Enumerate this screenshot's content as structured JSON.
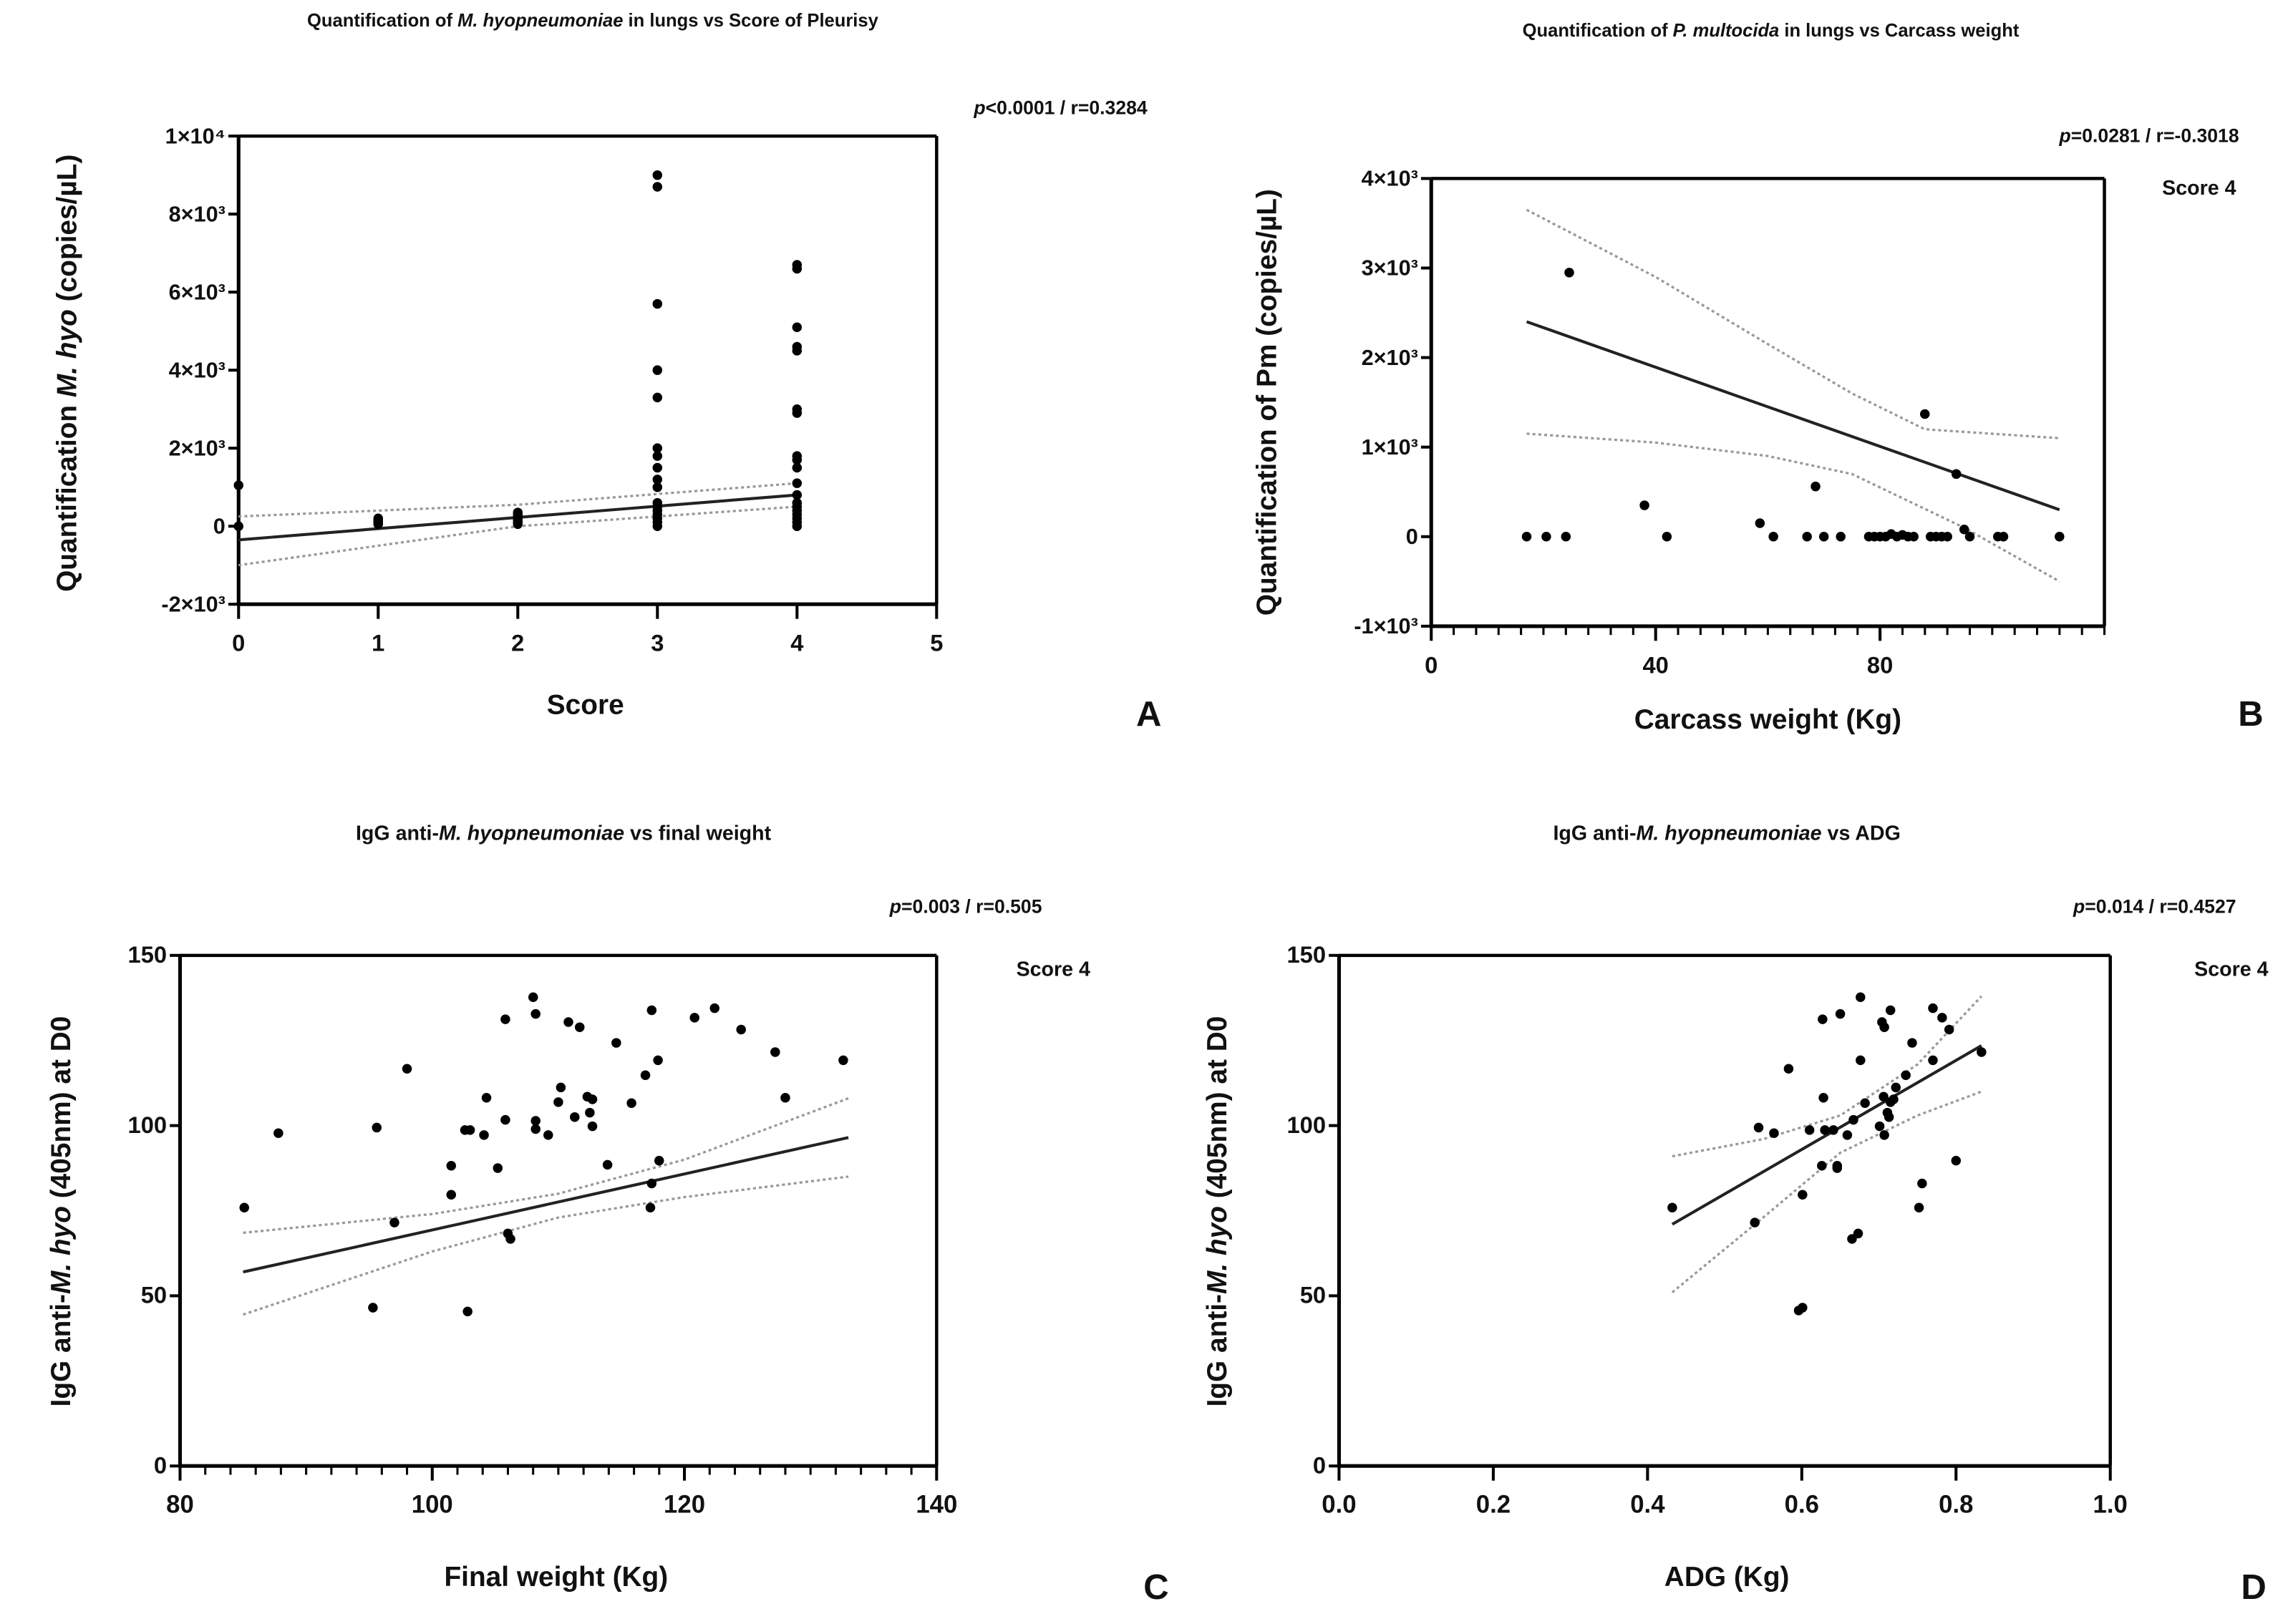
{
  "colors": {
    "points": "#000000",
    "fit_line": "#222222",
    "ci_line": "#999999",
    "axis": "#000000"
  },
  "chart_data": [
    {
      "id": "A",
      "type": "scatter",
      "panel_letter": "A",
      "title_parts": [
        {
          "text": "Quantification of ",
          "italic": false
        },
        {
          "text": "M. hyopneumoniae",
          "italic": true
        },
        {
          "text": " in lungs vs Score of Pleurisy",
          "italic": false
        }
      ],
      "stats_parts": [
        {
          "text": "p",
          "italic": true
        },
        {
          "text": "<0.0001 / r=0.3284",
          "italic": false
        }
      ],
      "annotation": "",
      "xlabel_parts": [
        {
          "text": "Score",
          "italic": false
        }
      ],
      "ylabel_parts": [
        {
          "text": "Quantification ",
          "italic": false
        },
        {
          "text": "M. hyo",
          "italic": true
        },
        {
          "text": " (copies/µL)",
          "italic": false
        }
      ],
      "xlim": [
        0,
        5
      ],
      "ylim": [
        -2000,
        10000
      ],
      "xticks": [
        0,
        1,
        2,
        3,
        4,
        5
      ],
      "xtick_labels": [
        "0",
        "1",
        "2",
        "3",
        "4",
        "5"
      ],
      "yticks": [
        -2000,
        0,
        2000,
        4000,
        6000,
        8000,
        10000
      ],
      "ytick_labels": [
        "-2×10³",
        "0",
        "2×10³",
        "4×10³",
        "6×10³",
        "8×10³",
        "1×10⁴"
      ],
      "x_minor_step": null,
      "points": [
        [
          0,
          0
        ],
        [
          0,
          1050
        ],
        [
          1,
          50
        ],
        [
          1,
          100
        ],
        [
          1,
          150
        ],
        [
          1,
          200
        ],
        [
          2,
          50
        ],
        [
          2,
          100
        ],
        [
          2,
          150
        ],
        [
          2,
          200
        ],
        [
          2,
          250
        ],
        [
          2,
          300
        ],
        [
          2,
          350
        ],
        [
          3,
          0
        ],
        [
          3,
          100
        ],
        [
          3,
          200
        ],
        [
          3,
          300
        ],
        [
          3,
          400
        ],
        [
          3,
          500
        ],
        [
          3,
          600
        ],
        [
          3,
          1000
        ],
        [
          3,
          1200
        ],
        [
          3,
          1500
        ],
        [
          3,
          1800
        ],
        [
          3,
          2000
        ],
        [
          3,
          3300
        ],
        [
          3,
          4000
        ],
        [
          3,
          5700
        ],
        [
          3,
          8700
        ],
        [
          3,
          9000
        ],
        [
          4,
          0
        ],
        [
          4,
          100
        ],
        [
          4,
          200
        ],
        [
          4,
          300
        ],
        [
          4,
          400
        ],
        [
          4,
          500
        ],
        [
          4,
          600
        ],
        [
          4,
          800
        ],
        [
          4,
          1100
        ],
        [
          4,
          1500
        ],
        [
          4,
          1700
        ],
        [
          4,
          1800
        ],
        [
          4,
          2900
        ],
        [
          4,
          3000
        ],
        [
          4,
          4500
        ],
        [
          4,
          4600
        ],
        [
          4,
          5100
        ],
        [
          4,
          6600
        ],
        [
          4,
          6700
        ]
      ],
      "fit": [
        [
          0,
          -350
        ],
        [
          4,
          800
        ]
      ],
      "ci_upper": [
        [
          0,
          250
        ],
        [
          2,
          550
        ],
        [
          4,
          1100
        ]
      ],
      "ci_lower": [
        [
          0,
          -1000
        ],
        [
          2,
          0
        ],
        [
          4,
          500
        ]
      ]
    },
    {
      "id": "B",
      "type": "scatter",
      "panel_letter": "B",
      "title_parts": [
        {
          "text": "Quantification of ",
          "italic": false
        },
        {
          "text": "P. multocida",
          "italic": true
        },
        {
          "text": " in lungs vs Carcass weight",
          "italic": false
        }
      ],
      "stats_parts": [
        {
          "text": "p",
          "italic": true
        },
        {
          "text": "=0.0281 / r=-0.3018",
          "italic": false
        }
      ],
      "annotation": "Score 4",
      "xlabel_parts": [
        {
          "text": "Carcass weight (Kg)",
          "italic": false
        }
      ],
      "ylabel_parts": [
        {
          "text": "Quantification of Pm (copies/µL)",
          "italic": false
        }
      ],
      "xlim": [
        0,
        120
      ],
      "ylim": [
        -1000,
        4000
      ],
      "xticks": [
        0,
        40,
        80
      ],
      "xtick_labels": [
        "0",
        "40",
        "80"
      ],
      "yticks": [
        -1000,
        0,
        1000,
        2000,
        3000,
        4000
      ],
      "ytick_labels": [
        "-1×10³",
        "0",
        "1×10³",
        "2×10³",
        "3×10³",
        "4×10³"
      ],
      "x_minor_step": 4,
      "points": [
        [
          17,
          0
        ],
        [
          20.5,
          0
        ],
        [
          24,
          0
        ],
        [
          24.6,
          2950
        ],
        [
          38,
          350
        ],
        [
          42,
          0
        ],
        [
          58.6,
          150
        ],
        [
          61,
          0
        ],
        [
          67,
          0
        ],
        [
          68.5,
          560
        ],
        [
          70,
          0
        ],
        [
          73,
          0
        ],
        [
          78,
          0
        ],
        [
          79,
          0
        ],
        [
          80,
          0
        ],
        [
          81,
          0
        ],
        [
          82,
          30
        ],
        [
          83,
          0
        ],
        [
          84,
          20
        ],
        [
          85,
          0
        ],
        [
          86,
          0
        ],
        [
          88,
          1370
        ],
        [
          89,
          0
        ],
        [
          90,
          0
        ],
        [
          91,
          0
        ],
        [
          92,
          0
        ],
        [
          93.6,
          700
        ],
        [
          95,
          80
        ],
        [
          96,
          0
        ],
        [
          101,
          0
        ],
        [
          102,
          0
        ],
        [
          112,
          0
        ]
      ],
      "fit": [
        [
          17,
          2400
        ],
        [
          112,
          300
        ]
      ],
      "ci_upper": [
        [
          17,
          3650
        ],
        [
          40,
          2900
        ],
        [
          60,
          2150
        ],
        [
          75,
          1600
        ],
        [
          88,
          1200
        ],
        [
          112,
          1100
        ]
      ],
      "ci_lower": [
        [
          17,
          1150
        ],
        [
          40,
          1050
        ],
        [
          60,
          900
        ],
        [
          75,
          700
        ],
        [
          95,
          100
        ],
        [
          112,
          -500
        ]
      ]
    },
    {
      "id": "C",
      "type": "scatter",
      "panel_letter": "C",
      "title_parts": [
        {
          "text": "IgG anti-",
          "italic": false
        },
        {
          "text": "M. hyopneumoniae",
          "italic": true
        },
        {
          "text": " vs final weight",
          "italic": false
        }
      ],
      "stats_parts": [
        {
          "text": "p",
          "italic": true
        },
        {
          "text": "=0.003 / r=0.505",
          "italic": false
        }
      ],
      "annotation": "Score 4",
      "xlabel_parts": [
        {
          "text": "Final weight (Kg)",
          "italic": false
        }
      ],
      "ylabel_parts": [
        {
          "text": "IgG anti-",
          "italic": false
        },
        {
          "text": "M. hyo",
          "italic": true
        },
        {
          "text": " (405nm) at D0",
          "italic": false
        }
      ],
      "xlim": [
        80,
        140
      ],
      "ylim": [
        0,
        150
      ],
      "xticks": [
        80,
        100,
        120,
        140
      ],
      "xtick_labels": [
        "80",
        "100",
        "120",
        "140"
      ],
      "yticks": [
        0,
        50,
        100,
        150
      ],
      "ytick_labels": [
        "0",
        "50",
        "100",
        "150"
      ],
      "x_minor_step": 2,
      "points": [
        [
          85.1,
          75.9
        ],
        [
          87.8,
          97.8
        ],
        [
          95.6,
          99.4
        ],
        [
          95.3,
          46.5
        ],
        [
          97,
          71.5
        ],
        [
          98,
          116.7
        ],
        [
          101.5,
          88.2
        ],
        [
          101.5,
          79.7
        ],
        [
          102.6,
          98.7
        ],
        [
          103,
          98.7
        ],
        [
          102.8,
          45.4
        ],
        [
          104.1,
          97.2
        ],
        [
          104.3,
          108.2
        ],
        [
          105.2,
          87.5
        ],
        [
          105.8,
          131.2
        ],
        [
          105.8,
          101.7
        ],
        [
          106,
          68.3
        ],
        [
          106.2,
          66.7
        ],
        [
          108,
          137.7
        ],
        [
          108.2,
          132.8
        ],
        [
          108.2,
          101.4
        ],
        [
          108.2,
          99
        ],
        [
          109.2,
          97.2
        ],
        [
          110,
          106.9
        ],
        [
          110.2,
          111.2
        ],
        [
          110.8,
          130.4
        ],
        [
          111.3,
          102.5
        ],
        [
          111.7,
          128.9
        ],
        [
          112.3,
          108.5
        ],
        [
          112.7,
          107.7
        ],
        [
          112.5,
          103.8
        ],
        [
          112.7,
          99.8
        ],
        [
          113.9,
          88.5
        ],
        [
          114.6,
          124.3
        ],
        [
          115.8,
          106.6
        ],
        [
          116.9,
          114.8
        ],
        [
          117.4,
          133.9
        ],
        [
          117.4,
          83
        ],
        [
          117.3,
          75.9
        ],
        [
          117.9,
          119.2
        ],
        [
          118,
          89.7
        ],
        [
          120.8,
          131.7
        ],
        [
          122.4,
          134.5
        ],
        [
          124.5,
          128.2
        ],
        [
          127.2,
          121.6
        ],
        [
          128,
          108.2
        ],
        [
          132.6,
          119.2
        ]
      ],
      "fit": [
        [
          85,
          57
        ],
        [
          133,
          96.5
        ]
      ],
      "ci_upper": [
        [
          85,
          68.5
        ],
        [
          100,
          74
        ],
        [
          110,
          80
        ],
        [
          120,
          90
        ],
        [
          133,
          108
        ]
      ],
      "ci_lower": [
        [
          85,
          44.5
        ],
        [
          100,
          63
        ],
        [
          110,
          73
        ],
        [
          120,
          79
        ],
        [
          133,
          85
        ]
      ]
    },
    {
      "id": "D",
      "type": "scatter",
      "panel_letter": "D",
      "title_parts": [
        {
          "text": "IgG anti-",
          "italic": false
        },
        {
          "text": "M. hyopneumoniae",
          "italic": true
        },
        {
          "text": " vs ADG",
          "italic": false
        }
      ],
      "stats_parts": [
        {
          "text": "p",
          "italic": true
        },
        {
          "text": "=0.014 / r=0.4527",
          "italic": false
        }
      ],
      "annotation": "Score 4",
      "xlabel_parts": [
        {
          "text": "ADG (Kg)",
          "italic": false
        }
      ],
      "ylabel_parts": [
        {
          "text": "IgG anti-",
          "italic": false
        },
        {
          "text": "M. hyo",
          "italic": true
        },
        {
          "text": " (405nm) at D0",
          "italic": false
        }
      ],
      "xlim": [
        0,
        1
      ],
      "ylim": [
        0,
        150
      ],
      "xticks": [
        0,
        0.2,
        0.4,
        0.6,
        0.8,
        1.0
      ],
      "xtick_labels": [
        "0.0",
        "0.2",
        "0.4",
        "0.6",
        "0.8",
        "1.0"
      ],
      "yticks": [
        0,
        50,
        100,
        150
      ],
      "ytick_labels": [
        "0",
        "50",
        "100",
        "150"
      ],
      "x_minor_step": null,
      "points": [
        [
          0.432,
          75.9
        ],
        [
          0.539,
          71.5
        ],
        [
          0.544,
          99.4
        ],
        [
          0.564,
          97.8
        ],
        [
          0.583,
          116.7
        ],
        [
          0.596,
          45.7
        ],
        [
          0.601,
          46.5
        ],
        [
          0.601,
          79.7
        ],
        [
          0.61,
          98.7
        ],
        [
          0.626,
          88.2
        ],
        [
          0.627,
          131.2
        ],
        [
          0.628,
          108.2
        ],
        [
          0.63,
          98.7
        ],
        [
          0.641,
          98.7
        ],
        [
          0.646,
          88.2
        ],
        [
          0.646,
          87.5
        ],
        [
          0.65,
          132.8
        ],
        [
          0.659,
          97.2
        ],
        [
          0.665,
          66.7
        ],
        [
          0.667,
          101.7
        ],
        [
          0.673,
          68.3
        ],
        [
          0.676,
          137.7
        ],
        [
          0.676,
          119.2
        ],
        [
          0.682,
          106.6
        ],
        [
          0.701,
          99.8
        ],
        [
          0.704,
          130.4
        ],
        [
          0.706,
          108.5
        ],
        [
          0.707,
          128.9
        ],
        [
          0.707,
          97.2
        ],
        [
          0.711,
          103.8
        ],
        [
          0.713,
          102.5
        ],
        [
          0.715,
          133.9
        ],
        [
          0.715,
          106.9
        ],
        [
          0.719,
          107.7
        ],
        [
          0.722,
          111.2
        ],
        [
          0.735,
          114.8
        ],
        [
          0.743,
          124.3
        ],
        [
          0.752,
          75.9
        ],
        [
          0.756,
          83
        ],
        [
          0.77,
          134.5
        ],
        [
          0.77,
          119.2
        ],
        [
          0.782,
          131.7
        ],
        [
          0.791,
          128.2
        ],
        [
          0.8,
          89.7
        ],
        [
          0.833,
          121.6
        ]
      ],
      "fit": [
        [
          0.432,
          71
        ],
        [
          0.833,
          123.5
        ]
      ],
      "ci_upper": [
        [
          0.432,
          91
        ],
        [
          0.55,
          96
        ],
        [
          0.65,
          103
        ],
        [
          0.75,
          118
        ],
        [
          0.833,
          138
        ]
      ],
      "ci_lower": [
        [
          0.432,
          51
        ],
        [
          0.55,
          73
        ],
        [
          0.65,
          92
        ],
        [
          0.75,
          103
        ],
        [
          0.833,
          110
        ]
      ]
    }
  ]
}
